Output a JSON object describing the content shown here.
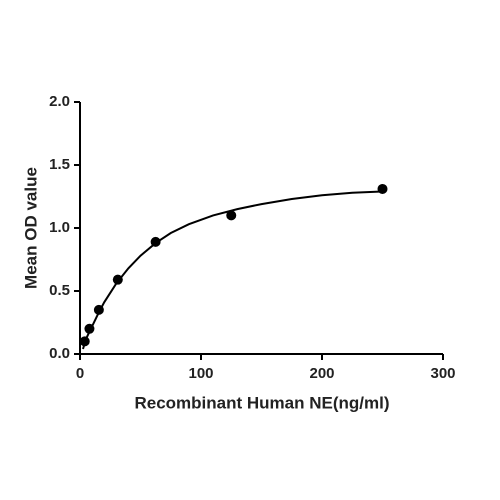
{
  "chart_data": {
    "type": "scatter",
    "x_label": "Recombinant Human NE(ng/ml)",
    "y_label": "Mean OD value",
    "x": [
      3.9,
      7.8,
      15.6,
      31.25,
      62.5,
      125,
      250
    ],
    "values": [
      0.1,
      0.2,
      0.35,
      0.59,
      0.89,
      1.1,
      1.31
    ],
    "color": "#000000",
    "fit": {
      "x": [
        2.5,
        5,
        10,
        15,
        20,
        30,
        40,
        50,
        62.5,
        75,
        90,
        110,
        130,
        150,
        175,
        200,
        225,
        250
      ],
      "values": [
        0.04,
        0.12,
        0.22,
        0.32,
        0.41,
        0.56,
        0.68,
        0.78,
        0.88,
        0.96,
        1.03,
        1.1,
        1.15,
        1.19,
        1.23,
        1.26,
        1.28,
        1.29
      ]
    },
    "xlim": [
      0,
      300
    ],
    "xticks": [
      0,
      100,
      200,
      300
    ],
    "ylim": [
      0,
      2.0
    ],
    "yticks": [
      {
        "value": 0,
        "label": "0.0"
      },
      {
        "value": 0.5,
        "label": "0.5"
      },
      {
        "value": 1,
        "label": "1.0"
      },
      {
        "value": 1.5,
        "label": "1.5"
      },
      {
        "value": 2,
        "label": "2.0"
      }
    ],
    "grid": false
  }
}
